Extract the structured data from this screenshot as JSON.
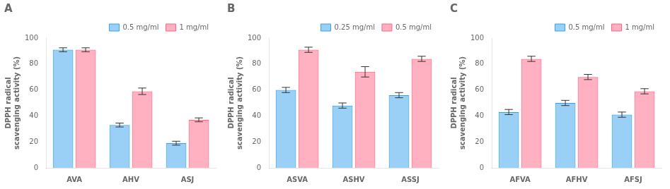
{
  "chart_data": [
    {
      "type": "bar",
      "title": "A",
      "categories": [
        "AVA",
        "AHV",
        "ASJ"
      ],
      "series": [
        {
          "name": "0.5 mg/ml",
          "values": [
            91,
            33,
            19
          ],
          "errors": [
            1.5,
            1.5,
            1.5
          ]
        },
        {
          "name": "1 mg/ml",
          "values": [
            91,
            59,
            37
          ],
          "errors": [
            1.5,
            2.5,
            1.5
          ]
        }
      ],
      "ylabel": "DPPH radical\nscavenging activity (%)",
      "ylim": [
        0,
        100
      ],
      "yticks": [
        0,
        20,
        40,
        60,
        80,
        100
      ],
      "legend": "upper right",
      "grid": false
    },
    {
      "type": "bar",
      "title": "B",
      "categories": [
        "ASVA",
        "ASHV",
        "ASSJ"
      ],
      "series": [
        {
          "name": "0.25 mg/ml",
          "values": [
            60,
            48,
            56
          ],
          "errors": [
            2,
            2,
            2
          ]
        },
        {
          "name": "0.5 mg/ml",
          "values": [
            91,
            74,
            84
          ],
          "errors": [
            2,
            4,
            2
          ]
        }
      ],
      "ylabel": "DPPH radical\nscavenging activity (%)",
      "ylim": [
        0,
        100
      ],
      "yticks": [
        0,
        20,
        40,
        60,
        80,
        100
      ],
      "legend": "upper right",
      "grid": false
    },
    {
      "type": "bar",
      "title": "C",
      "categories": [
        "AFVA",
        "AFHV",
        "AFSJ"
      ],
      "series": [
        {
          "name": "0.5 mg/ml",
          "values": [
            43,
            50,
            41
          ],
          "errors": [
            2,
            2,
            2
          ]
        },
        {
          "name": "1 mg/ml",
          "values": [
            84,
            70,
            59
          ],
          "errors": [
            2,
            2,
            2
          ]
        }
      ],
      "ylabel": "DPPH radical\nscavenging activity (%)",
      "ylim": [
        0,
        100
      ],
      "yticks": [
        0,
        20,
        40,
        60,
        80,
        100
      ],
      "legend": "upper right",
      "grid": false
    }
  ]
}
